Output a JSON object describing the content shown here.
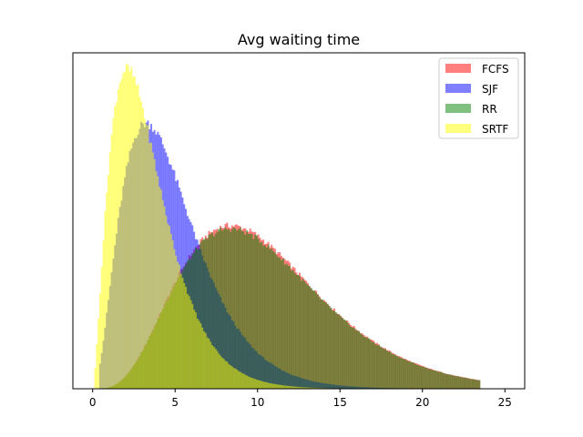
{
  "chart_data": {
    "type": "histogram",
    "title": "Avg waiting time",
    "xlabel": "",
    "ylabel": "",
    "xlim": [
      -1.2,
      26.2
    ],
    "ylim": [
      0,
      1.05
    ],
    "xticks": [
      0,
      5,
      10,
      15,
      20,
      25
    ],
    "xtick_labels": [
      "0",
      "5",
      "10",
      "15",
      "20",
      "25"
    ],
    "yticks_visible": false,
    "grid": false,
    "legend_position": "top-right",
    "series": [
      {
        "name": "FCFS",
        "color": "#ff0000",
        "alpha": 0.5,
        "bin_start": 0.3,
        "bin_end": 23.5,
        "bin_width": 0.1,
        "peak": 0.51,
        "shape": [
          4.8,
          2.2
        ]
      },
      {
        "name": "SJF",
        "color": "#0000ff",
        "alpha": 0.5,
        "bin_start": 0.4,
        "bin_end": 20.0,
        "bin_width": 0.1,
        "peak": 0.83,
        "shape": [
          3.1,
          1.55
        ]
      },
      {
        "name": "RR",
        "color": "#008000",
        "alpha": 0.5,
        "bin_start": 0.3,
        "bin_end": 23.5,
        "bin_width": 0.1,
        "peak": 0.5,
        "shape": [
          4.8,
          2.2
        ]
      },
      {
        "name": "SRTF",
        "color": "#ffff00",
        "alpha": 0.5,
        "bin_start": 0.1,
        "bin_end": 14.5,
        "bin_width": 0.1,
        "peak": 1.0,
        "shape": [
          2.6,
          1.3
        ]
      }
    ]
  }
}
